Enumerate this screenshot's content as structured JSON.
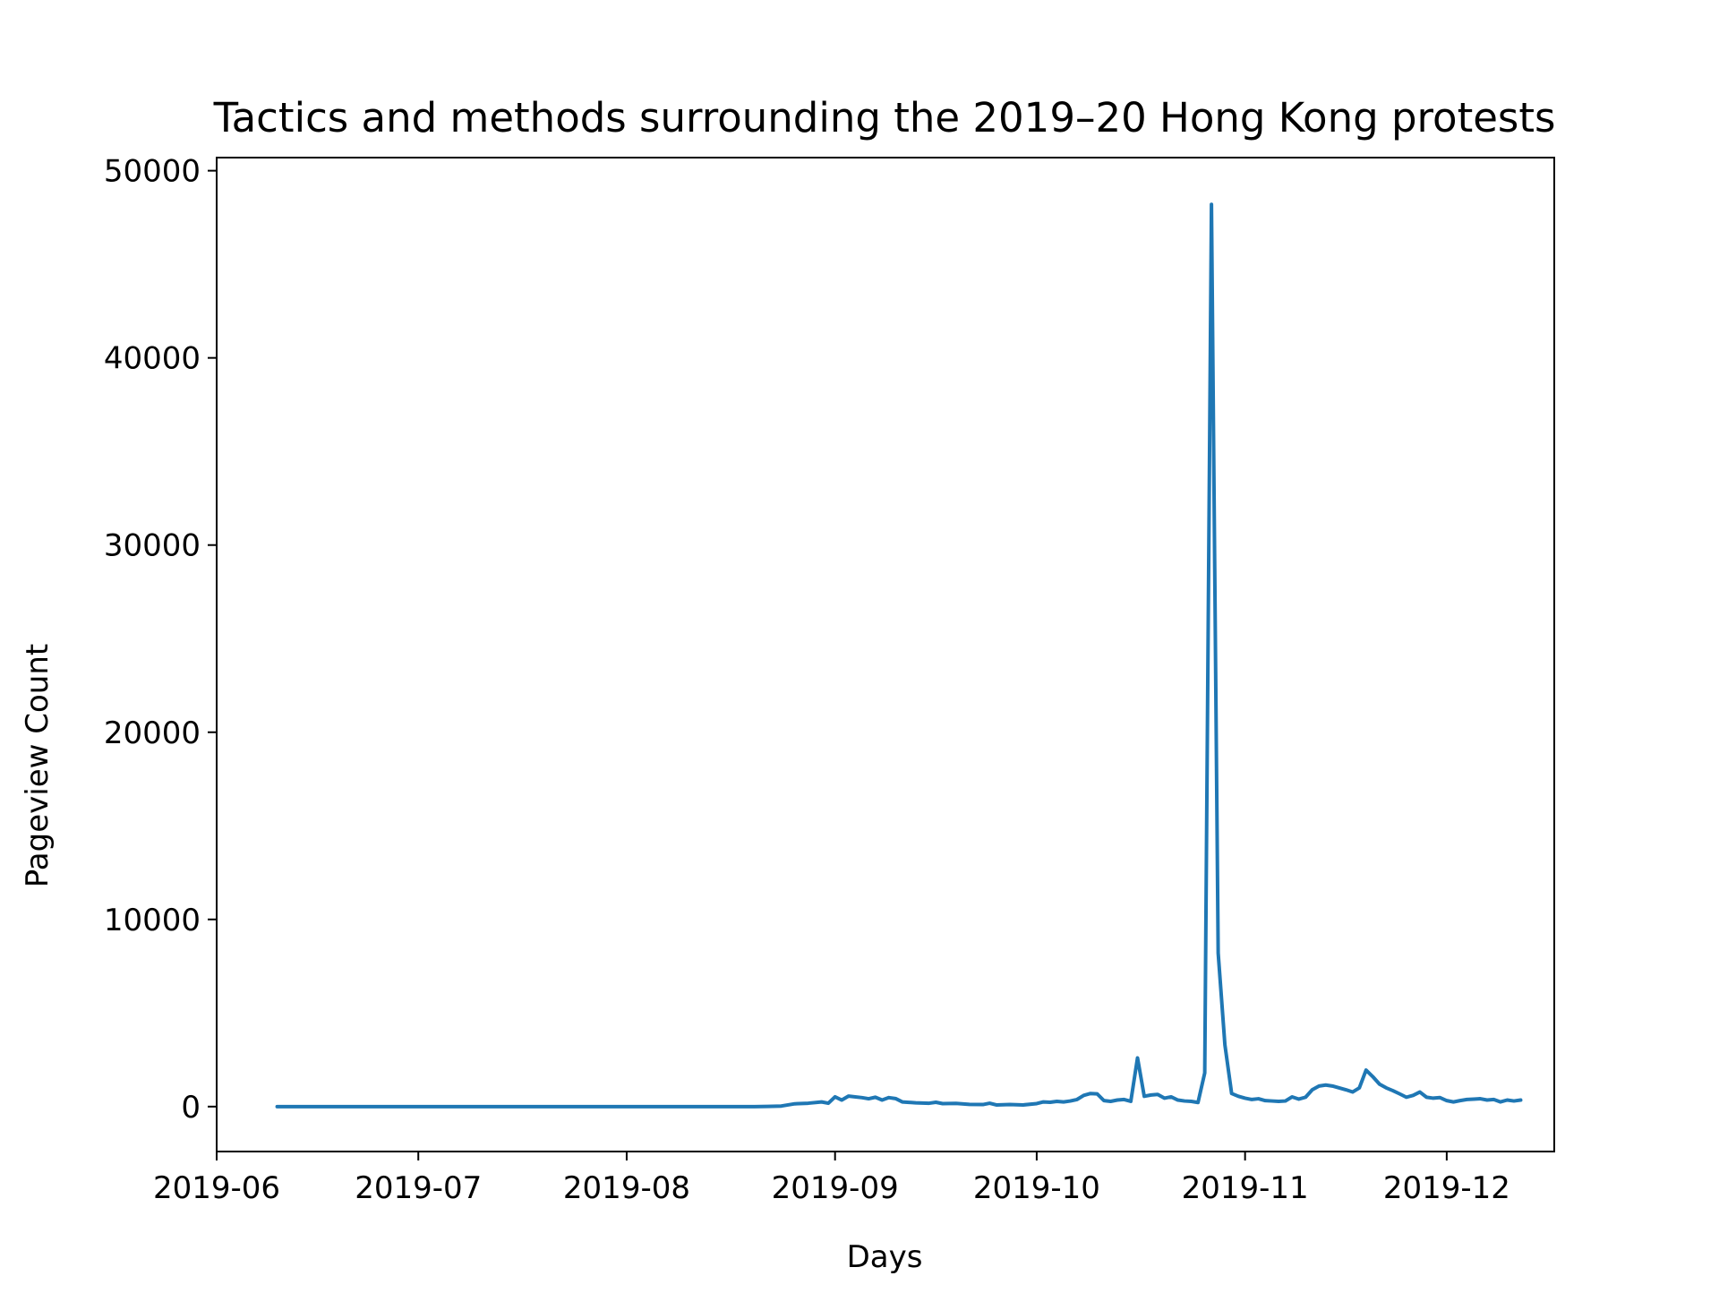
{
  "chart_data": {
    "type": "line",
    "title": "Tactics and methods surrounding the 2019–20 Hong Kong protests",
    "xlabel": "Days",
    "ylabel": "Pageview Count",
    "xlim": [
      "2019-06-01",
      "2019-12-17"
    ],
    "ylim": [
      -2400,
      50700
    ],
    "x_ticks": [
      {
        "date": "2019-06-01",
        "label": "2019-06"
      },
      {
        "date": "2019-07-01",
        "label": "2019-07"
      },
      {
        "date": "2019-08-01",
        "label": "2019-08"
      },
      {
        "date": "2019-09-01",
        "label": "2019-09"
      },
      {
        "date": "2019-10-01",
        "label": "2019-10"
      },
      {
        "date": "2019-11-01",
        "label": "2019-11"
      },
      {
        "date": "2019-12-01",
        "label": "2019-12"
      }
    ],
    "y_ticks": [
      {
        "value": 0,
        "label": "0"
      },
      {
        "value": 10000,
        "label": "10000"
      },
      {
        "value": 20000,
        "label": "20000"
      },
      {
        "value": 30000,
        "label": "30000"
      },
      {
        "value": 40000,
        "label": "40000"
      },
      {
        "value": 50000,
        "label": "50000"
      }
    ],
    "grid": false,
    "series": [
      {
        "color": "#1f77b4",
        "points": [
          [
            "2019-06-10",
            0
          ],
          [
            "2019-06-20",
            0
          ],
          [
            "2019-07-01",
            0
          ],
          [
            "2019-07-10",
            0
          ],
          [
            "2019-07-20",
            0
          ],
          [
            "2019-08-01",
            0
          ],
          [
            "2019-08-10",
            0
          ],
          [
            "2019-08-20",
            0
          ],
          [
            "2019-08-22",
            10
          ],
          [
            "2019-08-24",
            30
          ],
          [
            "2019-08-26",
            150
          ],
          [
            "2019-08-28",
            180
          ],
          [
            "2019-08-30",
            250
          ],
          [
            "2019-08-31",
            180
          ],
          [
            "2019-09-01",
            520
          ],
          [
            "2019-09-02",
            350
          ],
          [
            "2019-09-03",
            560
          ],
          [
            "2019-09-05",
            480
          ],
          [
            "2019-09-06",
            420
          ],
          [
            "2019-09-07",
            500
          ],
          [
            "2019-09-08",
            350
          ],
          [
            "2019-09-09",
            480
          ],
          [
            "2019-09-10",
            430
          ],
          [
            "2019-09-11",
            250
          ],
          [
            "2019-09-13",
            200
          ],
          [
            "2019-09-15",
            180
          ],
          [
            "2019-09-16",
            230
          ],
          [
            "2019-09-17",
            160
          ],
          [
            "2019-09-19",
            170
          ],
          [
            "2019-09-21",
            120
          ],
          [
            "2019-09-23",
            110
          ],
          [
            "2019-09-24",
            180
          ],
          [
            "2019-09-25",
            90
          ],
          [
            "2019-09-27",
            110
          ],
          [
            "2019-09-29",
            90
          ],
          [
            "2019-10-01",
            160
          ],
          [
            "2019-10-02",
            250
          ],
          [
            "2019-10-03",
            230
          ],
          [
            "2019-10-04",
            280
          ],
          [
            "2019-10-05",
            250
          ],
          [
            "2019-10-06",
            300
          ],
          [
            "2019-10-07",
            380
          ],
          [
            "2019-10-08",
            600
          ],
          [
            "2019-10-09",
            700
          ],
          [
            "2019-10-10",
            680
          ],
          [
            "2019-10-11",
            320
          ],
          [
            "2019-10-12",
            280
          ],
          [
            "2019-10-13",
            350
          ],
          [
            "2019-10-14",
            380
          ],
          [
            "2019-10-15",
            280
          ],
          [
            "2019-10-16",
            2600
          ],
          [
            "2019-10-17",
            550
          ],
          [
            "2019-10-18",
            620
          ],
          [
            "2019-10-19",
            650
          ],
          [
            "2019-10-20",
            450
          ],
          [
            "2019-10-21",
            520
          ],
          [
            "2019-10-22",
            350
          ],
          [
            "2019-10-23",
            300
          ],
          [
            "2019-10-24",
            280
          ],
          [
            "2019-10-25",
            220
          ],
          [
            "2019-10-26",
            1800
          ],
          [
            "2019-10-27",
            48200
          ],
          [
            "2019-10-28",
            8200
          ],
          [
            "2019-10-29",
            3300
          ],
          [
            "2019-10-30",
            700
          ],
          [
            "2019-10-31",
            550
          ],
          [
            "2019-11-01",
            450
          ],
          [
            "2019-11-02",
            380
          ],
          [
            "2019-11-03",
            420
          ],
          [
            "2019-11-04",
            320
          ],
          [
            "2019-11-05",
            300
          ],
          [
            "2019-11-06",
            280
          ],
          [
            "2019-11-07",
            300
          ],
          [
            "2019-11-08",
            520
          ],
          [
            "2019-11-09",
            400
          ],
          [
            "2019-11-10",
            500
          ],
          [
            "2019-11-11",
            900
          ],
          [
            "2019-11-12",
            1100
          ],
          [
            "2019-11-13",
            1150
          ],
          [
            "2019-11-14",
            1100
          ],
          [
            "2019-11-15",
            1000
          ],
          [
            "2019-11-16",
            900
          ],
          [
            "2019-11-17",
            780
          ],
          [
            "2019-11-18",
            1000
          ],
          [
            "2019-11-19",
            1950
          ],
          [
            "2019-11-20",
            1600
          ],
          [
            "2019-11-21",
            1200
          ],
          [
            "2019-11-22",
            1000
          ],
          [
            "2019-11-23",
            850
          ],
          [
            "2019-11-24",
            680
          ],
          [
            "2019-11-25",
            500
          ],
          [
            "2019-11-26",
            600
          ],
          [
            "2019-11-27",
            780
          ],
          [
            "2019-11-28",
            500
          ],
          [
            "2019-11-29",
            450
          ],
          [
            "2019-11-30",
            480
          ],
          [
            "2019-12-01",
            320
          ],
          [
            "2019-12-02",
            250
          ],
          [
            "2019-12-03",
            320
          ],
          [
            "2019-12-04",
            380
          ],
          [
            "2019-12-05",
            400
          ],
          [
            "2019-12-06",
            420
          ],
          [
            "2019-12-07",
            350
          ],
          [
            "2019-12-08",
            380
          ],
          [
            "2019-12-09",
            250
          ],
          [
            "2019-12-10",
            350
          ],
          [
            "2019-12-11",
            300
          ],
          [
            "2019-12-12",
            350
          ]
        ]
      }
    ]
  }
}
